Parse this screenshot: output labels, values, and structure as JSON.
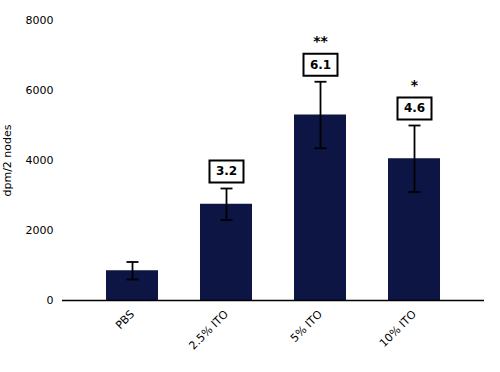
{
  "chart_data": {
    "type": "bar",
    "categories": [
      "PBS",
      "2.5% ITO",
      "5% ITO",
      "10% ITO"
    ],
    "values": [
      850,
      2750,
      5300,
      4050
    ],
    "errors": [
      250,
      450,
      950,
      950
    ],
    "stimulation_indices": [
      null,
      3.2,
      6.1,
      4.6
    ],
    "significance": [
      null,
      null,
      "**",
      "*"
    ],
    "color": "#0d1545",
    "ylabel": "dpm/2 nodes",
    "ylim": [
      0,
      8000
    ],
    "yticks": [
      0,
      2000,
      4000,
      6000,
      8000
    ],
    "grid": false
  }
}
